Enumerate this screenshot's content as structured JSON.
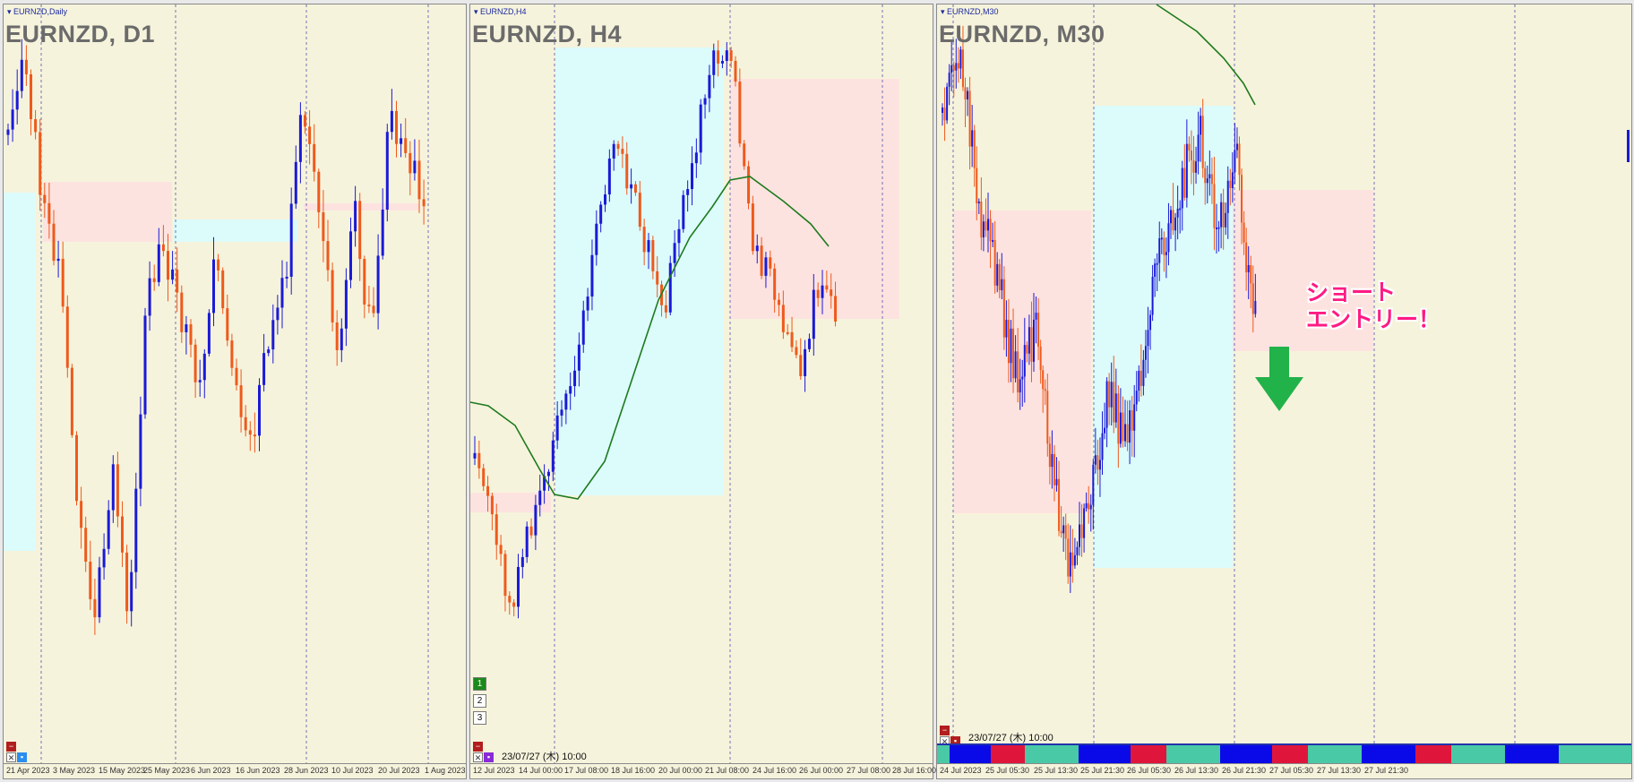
{
  "panes": [
    {
      "id": "d1",
      "window_label": "EURNZD,Daily",
      "title": "EURNZD, D1",
      "xaxis": [
        "21 Apr 2023",
        "3 May 2023",
        "15 May 2023",
        "25 May 2023",
        "6 Jun 2023",
        "16 Jun 2023",
        "28 Jun 2023",
        "10 Jul 2023",
        "20 Jul 2023",
        "1 Aug 2023"
      ]
    },
    {
      "id": "h4",
      "window_label": "EURNZD,H4",
      "title": "EURNZD, H4",
      "xaxis": [
        "12 Jul 2023",
        "14 Jul 00:00",
        "17 Jul 08:00",
        "18 Jul 16:00",
        "20 Jul 00:00",
        "21 Jul 08:00",
        "24 Jul 16:00",
        "26 Jul 00:00",
        "27 Jul 08:00",
        "28 Jul 16:00"
      ],
      "stamp": "23/07/27 (木) 10:00",
      "buttons": [
        "1",
        "2",
        "3"
      ]
    },
    {
      "id": "m30",
      "window_label": "EURNZD,M30",
      "title": "EURNZD, M30",
      "xaxis": [
        "24 Jul 2023",
        "25 Jul 05:30",
        "25 Jul 13:30",
        "25 Jul 21:30",
        "26 Jul 05:30",
        "26 Jul 13:30",
        "26 Jul 21:30",
        "27 Jul 05:30",
        "27 Jul 13:30",
        "27 Jul 21:30"
      ],
      "stamp": "23/07/27 (木) 10:00",
      "annotation": "ショート\nエントリー！"
    }
  ],
  "colors": {
    "background": "#f6f3dc",
    "bull_candle": "#1a1ad6",
    "bear_candle": "#ee5a1c",
    "zone_cyan": "#dcfbfb",
    "zone_pink": "#fde3e0",
    "moving_average": "#1d7a1d",
    "annotation": "#ff1a84",
    "arrow": "#22b24a"
  },
  "icons": [
    "close-icon",
    "minus-icon",
    "down-arrow-icon",
    "square-icon"
  ]
}
